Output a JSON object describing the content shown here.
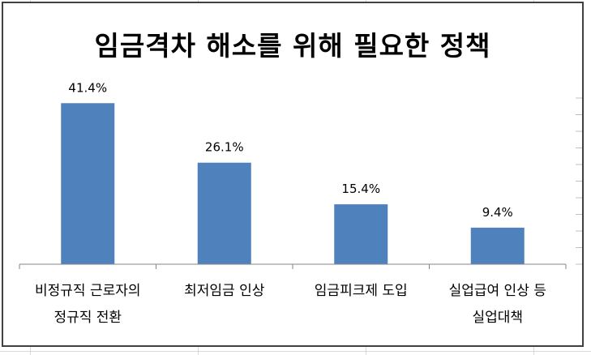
{
  "chart_data": {
    "type": "bar",
    "title": "임금격차 해소를 위해 필요한 정책",
    "categories": [
      [
        "비정규직 근로자의",
        "정규직 전환"
      ],
      [
        "최저임금 인상"
      ],
      [
        "임금피크제 도입"
      ],
      [
        "실업급여 인상 등",
        "실업대책"
      ]
    ],
    "values": [
      41.4,
      26.1,
      15.4,
      9.4
    ],
    "data_labels": [
      "41.4%",
      "26.1%",
      "15.4%",
      "9.4%"
    ],
    "ylim": [
      0,
      50
    ],
    "grid": false,
    "legend": "none",
    "bar_color": "#4f81bd"
  }
}
